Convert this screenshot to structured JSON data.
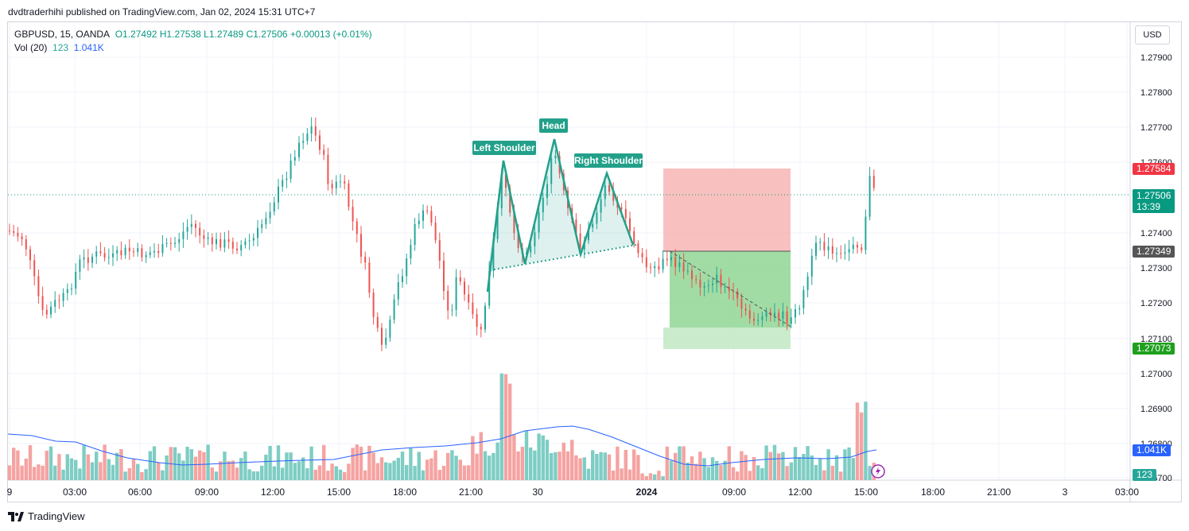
{
  "header": {
    "published": "dvdtraderhihi published on TradingView.com, Jan 02, 2024 15:31 UTC+7"
  },
  "legend": {
    "symbol": "GBPUSD, 15, OANDA",
    "ohlc": "O1.27492  H1.27538  L1.27489  C1.27506  +0.00013 (+0.01%)",
    "vol_label": "Vol (20)",
    "vol_value": "123",
    "vol_ma": "1.041K"
  },
  "currency_button": "USD",
  "price_scale": [
    "1.27900",
    "1.27800",
    "1.27700",
    "1.27600",
    "1.27400",
    "1.27300",
    "1.27200",
    "1.27100",
    "1.27000",
    "1.26900",
    "1.26800",
    "1.26700"
  ],
  "price_badges": {
    "stop": "1.27584",
    "last": "1.27506",
    "countdown": "13:39",
    "entry": "1.27349",
    "target": "1.27073",
    "vol_ma": "1.041K",
    "vol": "123"
  },
  "time_scale": [
    "9",
    "03:00",
    "06:00",
    "09:00",
    "12:00",
    "15:00",
    "18:00",
    "21:00",
    "30",
    "2024",
    "09:00",
    "12:00",
    "15:00",
    "18:00",
    "21:00",
    "3",
    "03:00"
  ],
  "pattern_labels": {
    "left": "Left Shoulder",
    "head": "Head",
    "right": "Right Shoulder"
  },
  "footer": {
    "brand": "TradingView"
  },
  "colors": {
    "up": "#26a69a",
    "down": "#ef5350",
    "pattern": "#22a08a",
    "stop_zone": "#f7b0b0",
    "target_zone": "#9ad7a1",
    "vol_ma": "#2962ff"
  },
  "chart_data": {
    "type": "candlestick",
    "symbol": "GBPUSD",
    "interval": "15",
    "ylim": [
      1.2665,
      1.28
    ],
    "pattern": "head-and-shoulders",
    "stop_loss": 1.27584,
    "entry": 1.27349,
    "take_profit": 1.27073,
    "last_price": 1.27506,
    "pattern_points": {
      "left_shoulder": 1.2761,
      "head": 1.2767,
      "right_shoulder": 1.2757,
      "neckline_left": 1.273,
      "neckline_right": 1.2736
    }
  }
}
